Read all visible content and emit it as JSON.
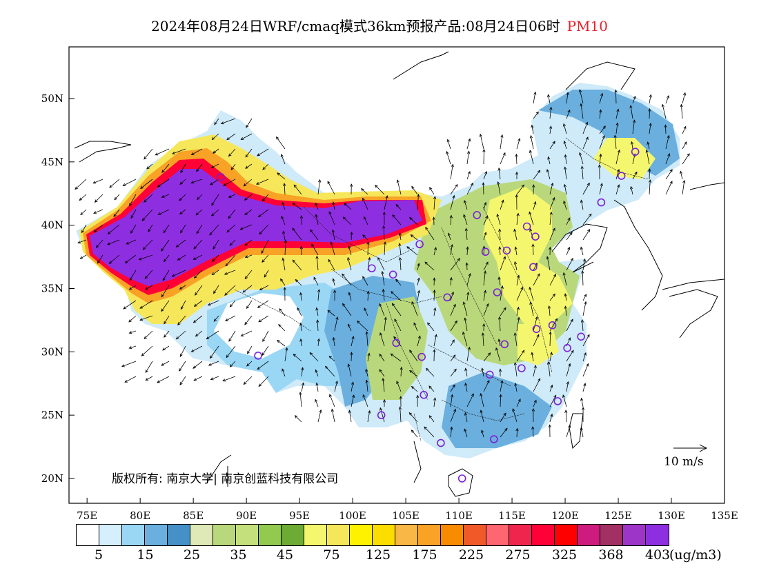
{
  "title": {
    "main": "2024年08月24日WRF/cmaq模式36km预报产品:08月24日06时",
    "variable": "PM10",
    "variable_color": "#e8212b"
  },
  "axes": {
    "lat_labels": [
      "50N",
      "45N",
      "40N",
      "35N",
      "30N",
      "25N",
      "20N"
    ],
    "lon_labels": [
      "75E",
      "80E",
      "85E",
      "90E",
      "95E",
      "100E",
      "105E",
      "110E",
      "115E",
      "120E",
      "125E",
      "130E",
      "135E"
    ]
  },
  "copyright": "版权所有: 南京大学| 南京创蓝科技有限公司",
  "wind_scale_label": "10 m/s",
  "legend": {
    "colors": [
      "#ffffff",
      "#d6effc",
      "#9ad7f5",
      "#6aafde",
      "#4590c6",
      "#dfe9b8",
      "#b9d87b",
      "#c4e07c",
      "#92c94f",
      "#6dab34",
      "#f4f76e",
      "#f6e75a",
      "#fff200",
      "#fbdd00",
      "#f9b746",
      "#f8a226",
      "#f98b00",
      "#f05a28",
      "#fe6670",
      "#f0254e",
      "#ff0037",
      "#ff0000",
      "#cd1c7d",
      "#a23062",
      "#9d35c8",
      "#8e2ee1"
    ],
    "labels": [
      "5",
      "15",
      "25",
      "35",
      "45",
      "75",
      "125",
      "175",
      "225",
      "275",
      "325",
      "368",
      "403"
    ],
    "units": "(ug/m3)"
  },
  "cities": [
    {
      "name": "urumqi",
      "lon": 87.6,
      "lat": 43.8
    },
    {
      "name": "lhasa",
      "lon": 91.1,
      "lat": 29.7
    },
    {
      "name": "xining",
      "lon": 101.8,
      "lat": 36.6
    },
    {
      "name": "lanzhou",
      "lon": 103.8,
      "lat": 36.1
    },
    {
      "name": "yinchuan",
      "lon": 106.3,
      "lat": 38.5
    },
    {
      "name": "hohhot",
      "lon": 111.7,
      "lat": 40.8
    },
    {
      "name": "beijing",
      "lon": 116.4,
      "lat": 39.9
    },
    {
      "name": "tianjin",
      "lon": 117.2,
      "lat": 39.1
    },
    {
      "name": "taiyuan",
      "lon": 112.5,
      "lat": 37.9
    },
    {
      "name": "shijiazhuang",
      "lon": 114.5,
      "lat": 38.0
    },
    {
      "name": "jinan",
      "lon": 117.0,
      "lat": 36.7
    },
    {
      "name": "zhengzhou",
      "lon": 113.6,
      "lat": 34.7
    },
    {
      "name": "xian",
      "lon": 108.9,
      "lat": 34.3
    },
    {
      "name": "chengdu",
      "lon": 104.1,
      "lat": 30.7
    },
    {
      "name": "chongqing",
      "lon": 106.5,
      "lat": 29.6
    },
    {
      "name": "wuhan",
      "lon": 114.3,
      "lat": 30.6
    },
    {
      "name": "hefei",
      "lon": 117.3,
      "lat": 31.8
    },
    {
      "name": "nanjing",
      "lon": 118.8,
      "lat": 32.1
    },
    {
      "name": "shanghai",
      "lon": 121.5,
      "lat": 31.2
    },
    {
      "name": "hangzhou",
      "lon": 120.2,
      "lat": 30.3
    },
    {
      "name": "changsha",
      "lon": 112.9,
      "lat": 28.2
    },
    {
      "name": "nanchang",
      "lon": 115.9,
      "lat": 28.7
    },
    {
      "name": "fuzhou",
      "lon": 119.3,
      "lat": 26.1
    },
    {
      "name": "guiyang",
      "lon": 106.7,
      "lat": 26.6
    },
    {
      "name": "kunming",
      "lon": 102.7,
      "lat": 25.0
    },
    {
      "name": "nanning",
      "lon": 108.3,
      "lat": 22.8
    },
    {
      "name": "guangzhou",
      "lon": 113.3,
      "lat": 23.1
    },
    {
      "name": "haikou",
      "lon": 110.3,
      "lat": 20.0
    },
    {
      "name": "shenyang",
      "lon": 123.4,
      "lat": 41.8
    },
    {
      "name": "changchun",
      "lon": 125.3,
      "lat": 43.9
    },
    {
      "name": "harbin",
      "lon": 126.6,
      "lat": 45.8
    }
  ]
}
